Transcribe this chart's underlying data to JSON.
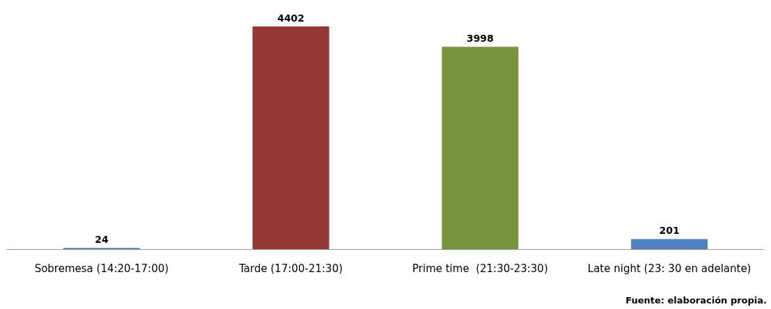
{
  "chart_data": {
    "type": "bar",
    "categories": [
      "Sobremesa (14:20-17:00)",
      "Tarde (17:00-21:30)",
      "Prime time  (21:30-23:30)",
      "Late night (23: 30 en adelante)"
    ],
    "values": [
      24,
      4402,
      3998,
      201
    ],
    "colors": [
      "#4f81bd",
      "#953735",
      "#77933c",
      "#4f81bd"
    ],
    "data_labels": true,
    "annotations": [
      "Fuente: elaboración propia."
    ]
  }
}
